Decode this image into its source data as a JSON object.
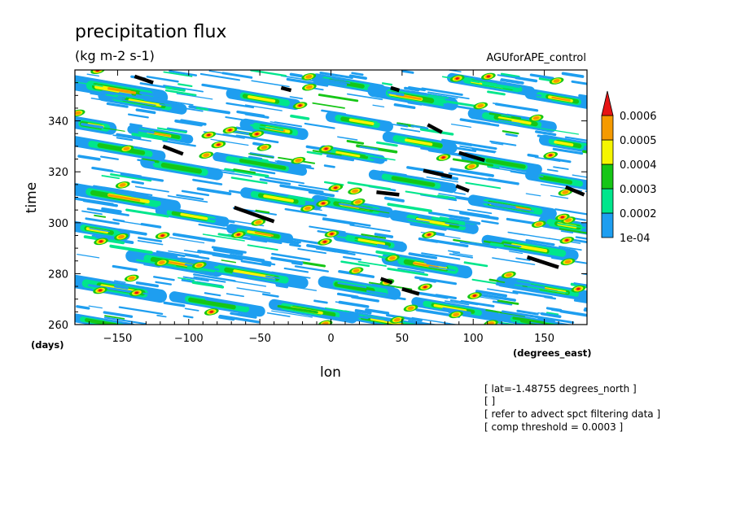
{
  "header": {
    "title": "precipitation flux",
    "units": "(kg m-2 s-1)",
    "dataset": "AGUforAPE_control"
  },
  "notes": [
    "[ lat=-1.48755 degrees_north ]",
    "[  ]",
    "[ refer to advect spct filtering data ]",
    "[ comp threshold = 0.0003 ]"
  ],
  "chart_data": {
    "type": "heatmap",
    "title": "precipitation flux",
    "units": "(kg m-2 s-1)",
    "xlabel": "lon",
    "xunits": "(degrees_east)",
    "ylabel": "time",
    "yunits": "(days)",
    "xlim": [
      -180,
      180
    ],
    "ylim": [
      260,
      360
    ],
    "xticks": [
      -150,
      -100,
      -50,
      0,
      50,
      100,
      150
    ],
    "yticks": [
      260,
      280,
      300,
      320,
      340
    ],
    "xtick_labels": [
      "−150",
      "−100",
      "−50",
      "0",
      "50",
      "100",
      "150"
    ],
    "ytick_labels": [
      "260",
      "280",
      "300",
      "320",
      "340"
    ],
    "levels": [
      0.0001,
      0.0002,
      0.0003,
      0.0004,
      0.0005,
      0.0006
    ],
    "level_labels": [
      "1e-04",
      "0.0002",
      "0.0003",
      "0.0004",
      "0.0005",
      "0.0006"
    ],
    "colors": [
      "#ffffff",
      "#1e9ef0",
      "#00e68c",
      "#16c616",
      "#f5f500",
      "#f59a00",
      "#e61414"
    ],
    "colorbar_placement": "right",
    "overlay": {
      "color": "#000000",
      "segments": [
        [
          -138,
          357.5,
          -125,
          355
        ],
        [
          -118,
          330,
          -104,
          327
        ],
        [
          -68,
          306,
          -40,
          300.5
        ],
        [
          -35,
          353,
          -28,
          352
        ],
        [
          32,
          312,
          48,
          311
        ],
        [
          35,
          278,
          43,
          276.5
        ],
        [
          50,
          274,
          62,
          272
        ],
        [
          65,
          320.5,
          85,
          318
        ],
        [
          88,
          314.5,
          97,
          312.5
        ],
        [
          68,
          338.5,
          78,
          335.5
        ],
        [
          90,
          327.5,
          108,
          324.5
        ],
        [
          42,
          353,
          48,
          352
        ],
        [
          138,
          286.5,
          160,
          282.5
        ],
        [
          165,
          314,
          178,
          311
        ]
      ]
    },
    "bands": [
      [
        -180,
        354,
        60,
        17,
        0.0005
      ],
      [
        -180,
        339,
        25,
        14,
        0.0004
      ],
      [
        -180,
        331,
        60,
        12,
        0.0003
      ],
      [
        -180,
        312,
        70,
        14,
        0.0005
      ],
      [
        -180,
        298,
        35,
        12,
        0.0004
      ],
      [
        -180,
        276,
        60,
        15,
        0.0004
      ],
      [
        -180,
        262,
        40,
        10,
        0.0003
      ],
      [
        -160,
        349,
        55,
        12,
        0.0004
      ],
      [
        -140,
        336,
        40,
        10,
        0.0005
      ],
      [
        -130,
        323,
        50,
        13,
        0.0003
      ],
      [
        -120,
        304,
        45,
        11,
        0.0004
      ],
      [
        -140,
        286,
        60,
        14,
        0.0005
      ],
      [
        -110,
        270,
        60,
        12,
        0.0003
      ],
      [
        -70,
        350,
        45,
        12,
        0.0004
      ],
      [
        -60,
        338,
        40,
        13,
        0.0005
      ],
      [
        -80,
        325,
        60,
        10,
        0.0003
      ],
      [
        -60,
        311,
        50,
        12,
        0.0004
      ],
      [
        -70,
        297,
        40,
        11,
        0.0005
      ],
      [
        -90,
        282,
        70,
        13,
        0.0004
      ],
      [
        -40,
        267,
        55,
        12,
        0.0004
      ],
      [
        -10,
        356,
        45,
        11,
        0.0003
      ],
      [
        0,
        341,
        40,
        12,
        0.0004
      ],
      [
        -5,
        328,
        40,
        10,
        0.0004
      ],
      [
        -10,
        308,
        50,
        12,
        0.0005
      ],
      [
        5,
        294,
        45,
        11,
        0.0004
      ],
      [
        -5,
        276,
        50,
        13,
        0.0003
      ],
      [
        10,
        263,
        55,
        10,
        0.0004
      ],
      [
        30,
        351,
        55,
        14,
        0.0005
      ],
      [
        40,
        333,
        45,
        12,
        0.0004
      ],
      [
        30,
        318,
        55,
        11,
        0.0003
      ],
      [
        45,
        302,
        55,
        12,
        0.0004
      ],
      [
        40,
        285,
        55,
        14,
        0.0005
      ],
      [
        60,
        268,
        55,
        11,
        0.0004
      ],
      [
        85,
        356,
        55,
        11,
        0.0004
      ],
      [
        100,
        342,
        55,
        12,
        0.0004
      ],
      [
        95,
        325,
        50,
        11,
        0.0003
      ],
      [
        100,
        308,
        55,
        12,
        0.0005
      ],
      [
        110,
        292,
        60,
        13,
        0.0004
      ],
      [
        120,
        276,
        60,
        12,
        0.0005
      ],
      [
        120,
        262,
        60,
        10,
        0.0003
      ],
      [
        140,
        350,
        40,
        12,
        0.0005
      ],
      [
        150,
        332,
        30,
        12,
        0.0004
      ],
      [
        140,
        318,
        40,
        11,
        0.0003
      ],
      [
        150,
        300,
        30,
        13,
        0.0004
      ]
    ]
  }
}
